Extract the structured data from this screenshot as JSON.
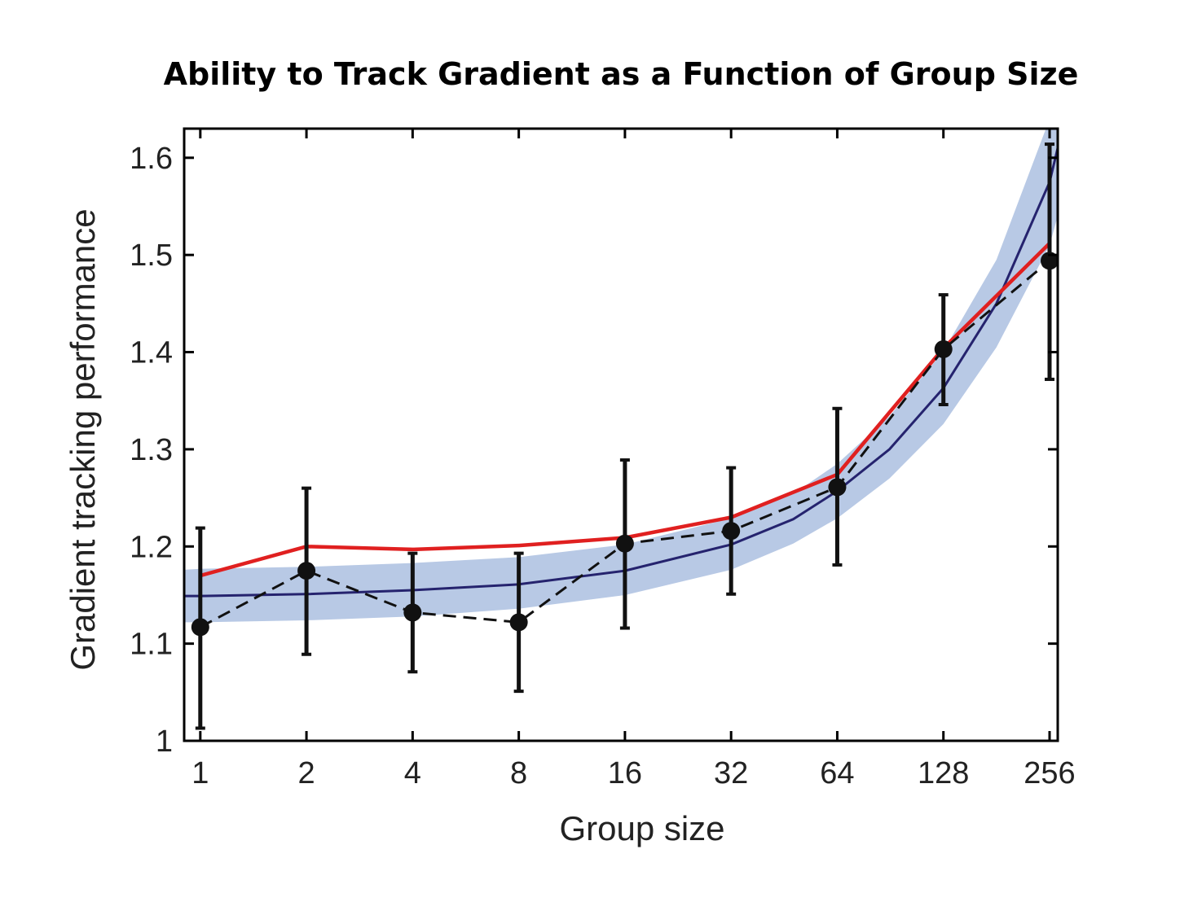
{
  "chart_data": {
    "type": "line",
    "title": "Ability to Track Gradient as a Function of Group Size",
    "xlabel": "Group size",
    "ylabel": "Gradient tracking performance",
    "x_scale": "log2",
    "x": [
      1,
      2,
      4,
      8,
      16,
      32,
      64,
      128,
      256
    ],
    "xlim": [
      0.9,
      270
    ],
    "ylim": [
      1.0,
      1.63
    ],
    "xticks": [
      "1",
      "2",
      "4",
      "8",
      "16",
      "32",
      "64",
      "128",
      "256"
    ],
    "yticks": [
      "1",
      "1.1",
      "1.2",
      "1.3",
      "1.4",
      "1.5",
      "1.6"
    ],
    "grid": false,
    "colors": {
      "observed": "#111111",
      "red_curve": "#e02020",
      "blue_curve": "#25236e",
      "band": "#b8c9e5"
    },
    "series": [
      {
        "style": "dashed-markers-errorbars",
        "values": [
          1.117,
          1.175,
          1.132,
          1.122,
          1.203,
          1.216,
          1.261,
          1.403,
          1.494
        ],
        "error_low": [
          1.013,
          1.089,
          1.071,
          1.051,
          1.116,
          1.151,
          1.181,
          1.346,
          1.372
        ],
        "error_high": [
          1.219,
          1.26,
          1.193,
          1.193,
          1.289,
          1.281,
          1.342,
          1.459,
          1.614
        ]
      },
      {
        "style": "red-solid",
        "values": [
          1.17,
          1.2,
          1.197,
          1.201,
          1.209,
          1.23,
          1.274,
          1.404,
          1.512
        ]
      },
      {
        "style": "blue-solid",
        "x": [
          0.9,
          1,
          2,
          4,
          8,
          16,
          32,
          48,
          64,
          90,
          128,
          181,
          256,
          270
        ],
        "values": [
          1.149,
          1.149,
          1.151,
          1.155,
          1.161,
          1.175,
          1.202,
          1.228,
          1.257,
          1.3,
          1.363,
          1.45,
          1.575,
          1.61
        ]
      },
      {
        "style": "blue-band",
        "x": [
          0.9,
          1,
          2,
          4,
          8,
          16,
          32,
          48,
          64,
          90,
          128,
          181,
          256,
          270
        ],
        "lower": [
          1.122,
          1.122,
          1.124,
          1.128,
          1.136,
          1.15,
          1.176,
          1.203,
          1.229,
          1.27,
          1.326,
          1.405,
          1.51,
          1.54
        ],
        "upper": [
          1.176,
          1.177,
          1.179,
          1.183,
          1.189,
          1.202,
          1.229,
          1.254,
          1.285,
          1.334,
          1.401,
          1.495,
          1.64,
          1.68
        ]
      }
    ]
  }
}
